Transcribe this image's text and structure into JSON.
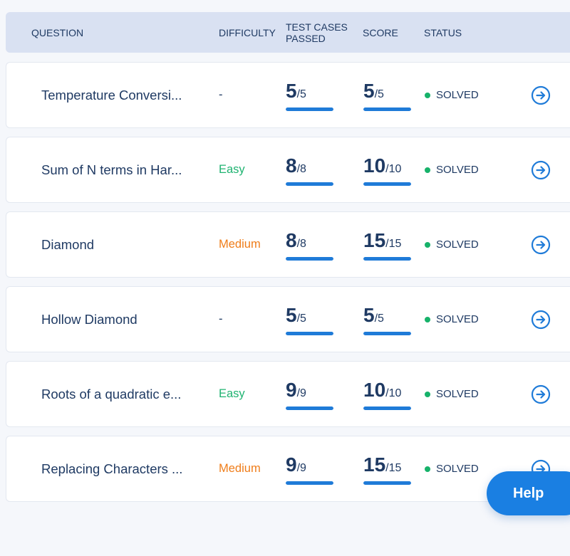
{
  "header": {
    "question": "QUESTION",
    "difficulty": "DIFFICULTY",
    "tests_line1": "TEST CASES",
    "tests_line2": "PASSED",
    "score": "SCORE",
    "status": "STATUS"
  },
  "rows": [
    {
      "title": "Temperature Conversi...",
      "difficulty": "-",
      "difficulty_level": "none",
      "tests_passed": "5",
      "tests_total": "/5",
      "tests_fraction": 1.0,
      "score": "5",
      "score_total": "/5",
      "score_fraction": 1.0,
      "status": "SOLVED"
    },
    {
      "title": "Sum of N terms in Har...",
      "difficulty": "Easy",
      "difficulty_level": "easy",
      "tests_passed": "8",
      "tests_total": "/8",
      "tests_fraction": 1.0,
      "score": "10",
      "score_total": "/10",
      "score_fraction": 1.0,
      "status": "SOLVED"
    },
    {
      "title": "Diamond",
      "difficulty": "Medium",
      "difficulty_level": "medium",
      "tests_passed": "8",
      "tests_total": "/8",
      "tests_fraction": 1.0,
      "score": "15",
      "score_total": "/15",
      "score_fraction": 1.0,
      "status": "SOLVED"
    },
    {
      "title": "Hollow Diamond",
      "difficulty": "-",
      "difficulty_level": "none",
      "tests_passed": "5",
      "tests_total": "/5",
      "tests_fraction": 1.0,
      "score": "5",
      "score_total": "/5",
      "score_fraction": 1.0,
      "status": "SOLVED"
    },
    {
      "title": "Roots of a quadratic e...",
      "difficulty": "Easy",
      "difficulty_level": "easy",
      "tests_passed": "9",
      "tests_total": "/9",
      "tests_fraction": 1.0,
      "score": "10",
      "score_total": "/10",
      "score_fraction": 1.0,
      "status": "SOLVED"
    },
    {
      "title": "Replacing Characters ...",
      "difficulty": "Medium",
      "difficulty_level": "medium",
      "tests_passed": "9",
      "tests_total": "/9",
      "tests_fraction": 1.0,
      "score": "15",
      "score_total": "/15",
      "score_fraction": 1.0,
      "status": "SOLVED"
    }
  ],
  "row_action_icon": "arrow-right-circle-icon",
  "help_button": {
    "label": "Help"
  },
  "colors": {
    "header_bg": "#d9e1f2",
    "text": "#1f3a63",
    "easy": "#1fb371",
    "medium": "#ef7d1a",
    "solved_dot": "#17b26a",
    "progress": "#1f7bd8",
    "accent": "#1a7fe2"
  }
}
